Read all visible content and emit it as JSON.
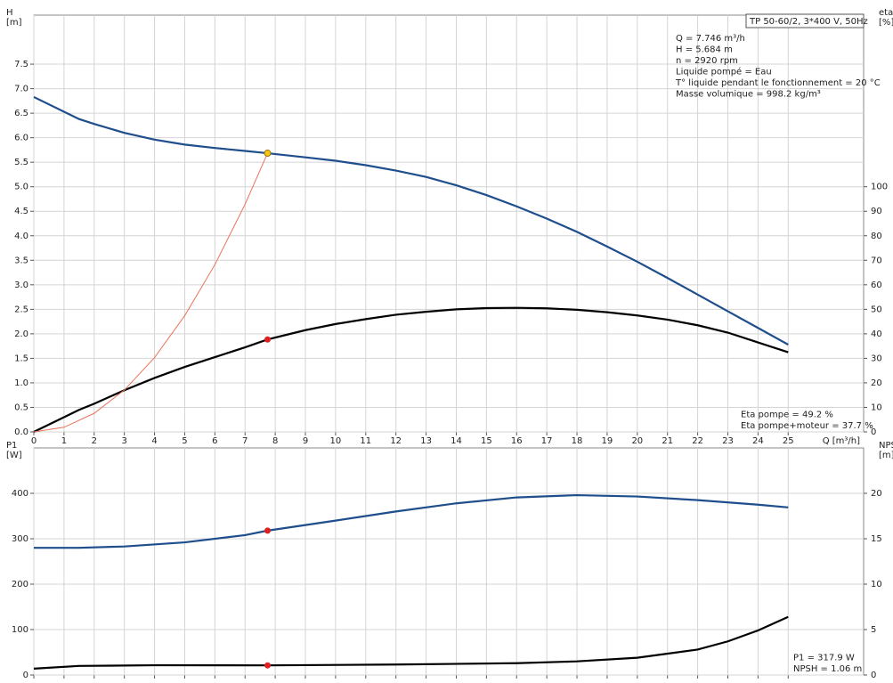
{
  "chart_data": [
    {
      "type": "line",
      "ylabel": [
        "H",
        "[m]"
      ],
      "y2label": [
        "eta",
        "[%]"
      ],
      "xlabel": "Q [m³/h]",
      "info_title": "TP 50-60/2, 3*400 V, 50Hz",
      "info_lines": [
        "Q = 7.746 m³/h",
        "H = 5.684 m",
        "n = 2920 rpm",
        "Liquide pompé = Eau",
        "T° liquide pendant le fonctionnement = 20 °C",
        "Masse volumique = 998.2 kg/m³"
      ],
      "annotations": [
        "Eta pompe = 49.2 %",
        "Eta pompe+moteur = 37.7 %"
      ],
      "xlim": [
        0,
        27.5
      ],
      "xticks": [
        0,
        1,
        2,
        3,
        4,
        5,
        6,
        7,
        8,
        9,
        10,
        11,
        12,
        13,
        14,
        15,
        16,
        17,
        18,
        19,
        20,
        21,
        22,
        23,
        24,
        25
      ],
      "ylim": [
        0,
        8.5
      ],
      "yticks": [
        {
          "value": 0,
          "label": "0.0"
        },
        0.5,
        {
          "value": 1,
          "label": "1.0"
        },
        1.5,
        {
          "value": 2,
          "label": "2.0"
        },
        2.5,
        {
          "value": 3,
          "label": "3.0"
        },
        3.5,
        {
          "value": 4,
          "label": "4.0"
        },
        4.5,
        {
          "value": 5,
          "label": "5.0"
        },
        5.5,
        {
          "value": 6,
          "label": "6.0"
        },
        6.5,
        {
          "value": 7,
          "label": "7.0"
        },
        7.5
      ],
      "y2lim": [
        0,
        170
      ],
      "y2ticks": [
        0,
        10,
        20,
        30,
        40,
        50,
        60,
        70,
        80,
        90,
        100
      ],
      "grid": true,
      "series": [
        {
          "color": "#1f4e8c",
          "axis": "y",
          "x": [
            0,
            1.5,
            2,
            3,
            4,
            5,
            6,
            7,
            7.746,
            9,
            10,
            11,
            12,
            13,
            14,
            15,
            16,
            17,
            18,
            19,
            20,
            21,
            22,
            23,
            24,
            25
          ],
          "values": [
            6.83,
            6.38,
            6.28,
            6.1,
            5.96,
            5.86,
            5.79,
            5.73,
            5.684,
            5.6,
            5.53,
            5.44,
            5.33,
            5.2,
            5.03,
            4.83,
            4.6,
            4.35,
            4.08,
            3.78,
            3.47,
            3.14,
            2.8,
            2.46,
            2.12,
            1.78
          ]
        },
        {
          "color": "#000000",
          "axis": "y2",
          "x": [
            0,
            1.5,
            2,
            3,
            4,
            5,
            6,
            7,
            7.746,
            9,
            10,
            11,
            12,
            13,
            14,
            15,
            16,
            17,
            18,
            19,
            20,
            21,
            22,
            23,
            24,
            25
          ],
          "values": [
            0,
            9,
            11.5,
            17,
            22,
            26.5,
            30.5,
            34.5,
            37.7,
            41.5,
            44,
            46,
            47.8,
            49,
            50,
            50.5,
            50.6,
            50.4,
            49.8,
            48.8,
            47.5,
            45.8,
            43.5,
            40.5,
            36.5,
            32.5
          ]
        },
        {
          "color": "#e8735a",
          "axis": "y",
          "thin": true,
          "x": [
            0,
            1,
            2,
            3,
            4,
            5,
            6,
            7,
            7.746
          ],
          "values": [
            0,
            0.095,
            0.379,
            0.853,
            1.516,
            2.369,
            3.411,
            4.642,
            5.684
          ]
        }
      ],
      "points": [
        {
          "x": 7.746,
          "y": 5.684,
          "axis": "y",
          "color": "#f5c518"
        },
        {
          "x": 7.746,
          "y": 37.7,
          "axis": "y2",
          "color": "#e02020"
        }
      ]
    },
    {
      "type": "line",
      "ylabel": [
        "P1",
        "[W]"
      ],
      "y2label": [
        "NPSH",
        "[m]"
      ],
      "annotations": [
        "P1 = 317.9 W",
        "NPSH = 1.06 m"
      ],
      "xlim": [
        0,
        27.5
      ],
      "xticks": [
        0,
        1,
        2,
        3,
        4,
        5,
        6,
        7,
        8,
        9,
        10,
        11,
        12,
        13,
        14,
        15,
        16,
        17,
        18,
        19,
        20,
        21,
        22,
        23,
        24,
        25
      ],
      "show_xtick_labels": false,
      "ylim": [
        0,
        500
      ],
      "yticks": [
        0,
        100,
        200,
        300,
        400
      ],
      "y2lim": [
        0,
        25
      ],
      "y2ticks": [
        0,
        5,
        10,
        15,
        20
      ],
      "grid": true,
      "series": [
        {
          "color": "#1f4e8c",
          "axis": "y",
          "x": [
            0,
            1.5,
            3,
            5,
            7,
            7.746,
            10,
            12,
            14,
            16,
            18,
            20,
            22,
            24,
            25
          ],
          "values": [
            280,
            280,
            283,
            292,
            308,
            317.9,
            340,
            360,
            378,
            391,
            396,
            393,
            385,
            375,
            369
          ]
        },
        {
          "color": "#000000",
          "axis": "y2",
          "x": [
            0,
            1.5,
            4,
            7.746,
            12,
            16,
            18,
            20,
            22,
            23,
            24,
            25
          ],
          "values": [
            0.7,
            1.0,
            1.07,
            1.06,
            1.15,
            1.3,
            1.5,
            1.9,
            2.8,
            3.7,
            4.9,
            6.4
          ]
        }
      ],
      "points": [
        {
          "x": 7.746,
          "y": 317.9,
          "axis": "y",
          "color": "#e02020"
        },
        {
          "x": 7.746,
          "y": 1.06,
          "axis": "y2",
          "color": "#e02020"
        }
      ]
    }
  ]
}
